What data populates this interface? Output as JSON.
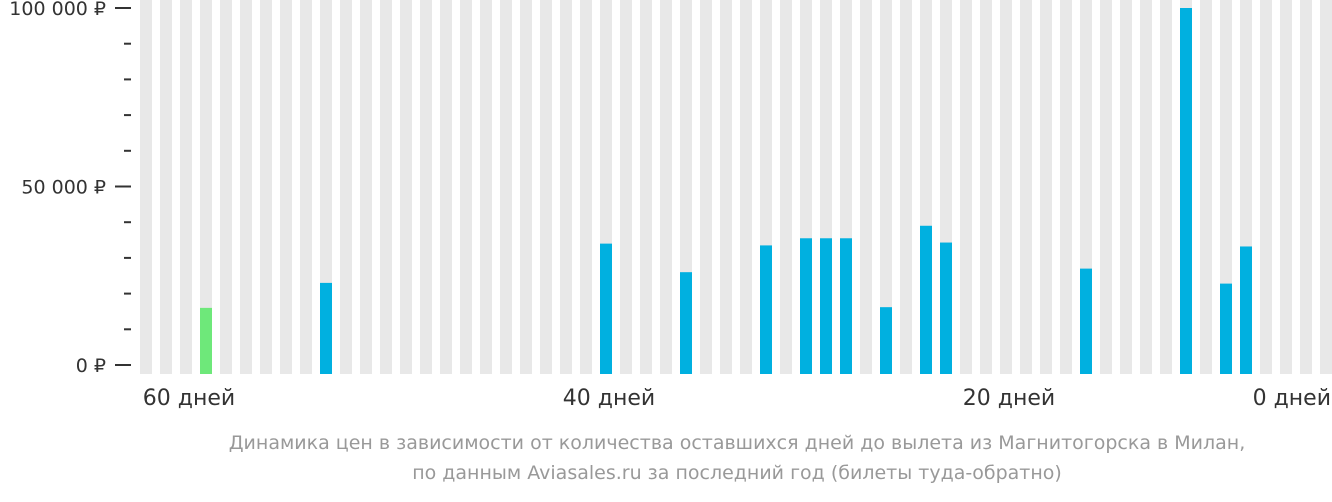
{
  "chart_data": {
    "type": "bar",
    "x_unit": "days before departure",
    "x": [
      61,
      60,
      59,
      58,
      57,
      56,
      55,
      54,
      53,
      52,
      51,
      50,
      49,
      48,
      47,
      46,
      45,
      44,
      43,
      42,
      41,
      40,
      39,
      38,
      37,
      36,
      35,
      34,
      33,
      32,
      31,
      30,
      29,
      28,
      27,
      26,
      25,
      24,
      23,
      22,
      21,
      20,
      19,
      18,
      17,
      16,
      15,
      14,
      13,
      12,
      11,
      10,
      9,
      8,
      7,
      6,
      5,
      4,
      3,
      2,
      1,
      0
    ],
    "values": [
      null,
      null,
      null,
      16000,
      null,
      null,
      null,
      null,
      null,
      23000,
      null,
      null,
      null,
      null,
      null,
      null,
      null,
      null,
      null,
      null,
      null,
      null,
      null,
      34000,
      null,
      null,
      null,
      26000,
      null,
      null,
      null,
      33500,
      null,
      35500,
      35500,
      35500,
      null,
      16200,
      null,
      39000,
      34300,
      null,
      null,
      null,
      null,
      null,
      null,
      27000,
      null,
      null,
      null,
      null,
      100000,
      null,
      22800,
      33200,
      null,
      null,
      null,
      null,
      null,
      null
    ],
    "highlight": {
      "x": 58,
      "value": 16000
    },
    "colors": {
      "bar": "#00b0e0",
      "highlight": "#6ee87a",
      "background_bar": "#e8e8e8",
      "axis": "#333333"
    },
    "y_ticks": [
      {
        "value": 0,
        "label": "0 ₽"
      },
      {
        "value": 50000,
        "label": "50 000 ₽"
      },
      {
        "value": 100000,
        "label": "100 000 ₽"
      }
    ],
    "y_minor_step": 10000,
    "ylim": [
      0,
      100000
    ],
    "x_ticks": [
      {
        "value": 60,
        "label": "60 дней"
      },
      {
        "value": 40,
        "label": "40 дней"
      },
      {
        "value": 20,
        "label": "20 дней"
      },
      {
        "value": 0,
        "label": "0 дней"
      }
    ],
    "caption_lines": [
      "Динамика цен в зависимости от количества оставшихся дней до вылета из Магнитогорска в Милан,",
      "по данным Aviasales.ru за последний год (билеты туда-обратно)"
    ]
  }
}
